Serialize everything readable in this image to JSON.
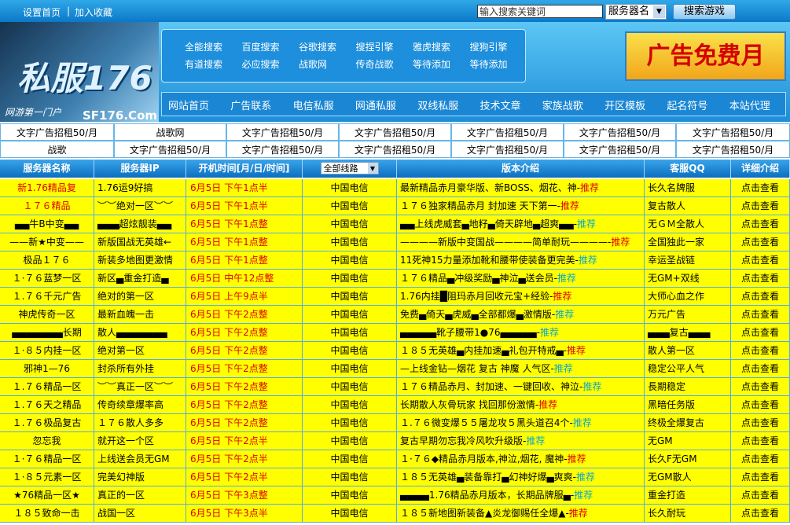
{
  "topbar": {
    "links": [
      "设置首页",
      "加入收藏"
    ],
    "separator": "|",
    "search_placeholder": "输入搜索关键词",
    "select": "服务器名",
    "button": "搜索游戏"
  },
  "header": {
    "logo": "私服176",
    "slogan": "网游第一门户",
    "domain": "SF176.Com",
    "ad": "广告免费月"
  },
  "search_links": [
    [
      "全能搜索",
      "百度搜索",
      "谷歌搜索",
      "搜捏引擎",
      "雅虎搜索",
      "搜狗引擎"
    ],
    [
      "有道搜索",
      "必应搜索",
      "战歌网",
      "传奇战歌",
      "等待添加",
      "等待添加"
    ]
  ],
  "nav": [
    "网站首页",
    "广告联系",
    "电信私服",
    "网通私服",
    "双线私服",
    "技术文章",
    "家族战歌",
    "开区模板",
    "起名符号",
    "本站代理"
  ],
  "ads": [
    [
      "文字广告招租50/月",
      "战歌网",
      "文字广告招租50/月",
      "文字广告招租50/月",
      "文字广告招租50/月",
      "文字广告招租50/月",
      "文字广告招租50/月"
    ],
    [
      "战歌",
      "文字广告招租50/月",
      "文字广告招租50/月",
      "文字广告招租50/月",
      "文字广告招租50/月",
      "文字广告招租50/月",
      "文字广告招租50/月"
    ]
  ],
  "table": {
    "headers": [
      "服务器名称",
      "服务器IP",
      "开机时间[月/日/时间]",
      "全部线路",
      "版本介绍",
      "客服QQ",
      "详细介绍"
    ],
    "rows": [
      {
        "name": "新1.76精品复",
        "ip": "1.76运9好搞",
        "time": "6月5日  下午1点半",
        "line": "中国电信",
        "intro": "最新精品赤月豪华版、新BOSS、烟花、神-",
        "tag": "推荐",
        "qq": "长久名牌服",
        "detail": "点击查看"
      },
      {
        "name": "１７６精品",
        "ip": "︶︶绝对一区︶︶",
        "time": "6月5日  下午1点半",
        "line": "中国电信",
        "intro": "１７６独家精品赤月 封加速 天下第一-",
        "tag": "推荐",
        "qq": "复古散人",
        "detail": "点击查看"
      },
      {
        "name": "▄▄牛B中变▄▄",
        "ip": "▄▄▄超炫靓装▄▄",
        "time": "6月5日  下午1点整",
        "line": "中国电信",
        "intro": "▄▄上线虎威套▄地籽▄倚天辟地▄超爽▄▄-",
        "tag": "推荐",
        "qq": "无ＧＭ全散人",
        "detail": "点击查看"
      },
      {
        "name": "——新★中变——",
        "ip": "新版国战无英雄←",
        "time": "6月5日  下午1点整",
        "line": "中国电信",
        "intro": "————新版中变国战————简单耐玩————-",
        "tag": "推荐",
        "qq": "全国独此一家",
        "detail": "点击查看"
      },
      {
        "name": "极品１７６",
        "ip": "新装多地图更激情",
        "time": "6月5日  下午1点整",
        "line": "中国电信",
        "intro": "11死神15力量添加靴和腰带使装备更完美-",
        "tag": "推荐",
        "qq": "幸运圣战链",
        "detail": "点击查看"
      },
      {
        "name": "１·７６蓝梦一区",
        "ip": "新区▄重金打造▄",
        "time": "6月5日  中午12点整",
        "line": "中国电信",
        "intro": "１７６精品▄冲级奖励▄神泣▄送会员-",
        "tag": "推荐",
        "qq": "无GM+双线",
        "detail": "点击查看"
      },
      {
        "name": "１.７６千元广告",
        "ip": "绝对的第一区",
        "time": "6月5日  上午9点半",
        "line": "中国电信",
        "intro": "1.76内挂█阻玛赤月回收元宝+经验-",
        "tag": "推荐",
        "qq": "大师心血之作",
        "detail": "点击查看"
      },
      {
        "name": "神虎传奇一区",
        "ip": "最新血魄一击",
        "time": "6月5日  下午2点整",
        "line": "中国电信",
        "intro": "免费▄倚天▄虎威▄全部都爆▄激情版-",
        "tag": "推荐",
        "qq": "万元广告",
        "detail": "点击查看"
      },
      {
        "name": "▄▄▄▄▄▄▄长期",
        "ip": "散人▄▄▄▄▄▄▄",
        "time": "6月5日  下午2点整",
        "line": "中国电信",
        "intro": "▄▄▄▄▄靴子腰带1●76▄▄▄▄▄-",
        "tag": "推荐",
        "qq": "▄▄▄复古▄▄▄",
        "detail": "点击查看"
      },
      {
        "name": "１·８５内挂一区",
        "ip": "绝对第一区",
        "time": "6月5日  下午2点整",
        "line": "中国电信",
        "intro": "１８５无英雄▄内挂加速▄礼包开特戒▄-",
        "tag": "推荐",
        "qq": "散人第一区",
        "detail": "点击查看"
      },
      {
        "name": "邪神1—76",
        "ip": "封杀所有外挂",
        "time": "6月5日  下午2点整",
        "line": "中国电信",
        "intro": "—上线金钻—烟花 复古 神魔 人气区-",
        "tag": "推荐",
        "qq": "稳定公平人气",
        "detail": "点击查看"
      },
      {
        "name": "１.７６精品一区",
        "ip": "︶︶真正一区︶︶",
        "time": "6月5日  下午2点整",
        "line": "中国电信",
        "intro": "１７６精品赤月、封加速、一键回收、神泣-",
        "tag": "推荐",
        "qq": "長期稳定",
        "detail": "点击查看"
      },
      {
        "name": "１.７６天之精品",
        "ip": "传奇续章爆率高",
        "time": "6月5日  下午2点整",
        "line": "中国电信",
        "intro": "长期散人灰骨玩家 找回那份激情-",
        "tag": "推荐",
        "qq": "黑暗任务版",
        "detail": "点击查看"
      },
      {
        "name": "１.７６极品复古",
        "ip": "１７６散人多多",
        "time": "6月5日  下午2点整",
        "line": "中国电信",
        "intro": "１.７６微变爆５５屠龙攻５黑头道召4个-",
        "tag": "推荐",
        "qq": "终极全爆复古",
        "detail": "点击查看"
      },
      {
        "name": "忽忘我",
        "ip": "就开这一个区",
        "time": "6月5日  下午2点半",
        "line": "中国电信",
        "intro": "复古早期勿忘我冷风吹升级版-",
        "tag": "推荐",
        "qq": "无GM",
        "detail": "点击查看"
      },
      {
        "name": "１·７６精品一区",
        "ip": "上线送会员无GM",
        "time": "6月5日  下午2点半",
        "line": "中国电信",
        "intro": "１·７６◆精品赤月版本,神泣,烟花, 魔神-",
        "tag": "推荐",
        "qq": "长久F无GM",
        "detail": "点击查看"
      },
      {
        "name": "１·８５元素一区",
        "ip": "完美幻神版",
        "time": "6月5日  下午2点半",
        "line": "中国电信",
        "intro": "１８５无英雄▄装备靠打▄幻神好爆▄爽爽-",
        "tag": "推荐",
        "qq": "无GM散人",
        "detail": "点击查看"
      },
      {
        "name": "★76精品一区★",
        "ip": "真正的一区",
        "time": "6月5日  下午3点整",
        "line": "中国电信",
        "intro": "▄▄▄▄1.76精品赤月版本，长期品牌服▄-",
        "tag": "推荐",
        "qq": "重金打造",
        "detail": "点击查看"
      },
      {
        "name": "１８５致命一击",
        "ip": "战国一区",
        "time": "6月5日  下午3点半",
        "line": "中国电信",
        "intro": "１８５新地图新装备▲炎龙御赐任全爆▲-",
        "tag": "推荐",
        "qq": "长久耐玩",
        "detail": "点击查看"
      }
    ]
  }
}
